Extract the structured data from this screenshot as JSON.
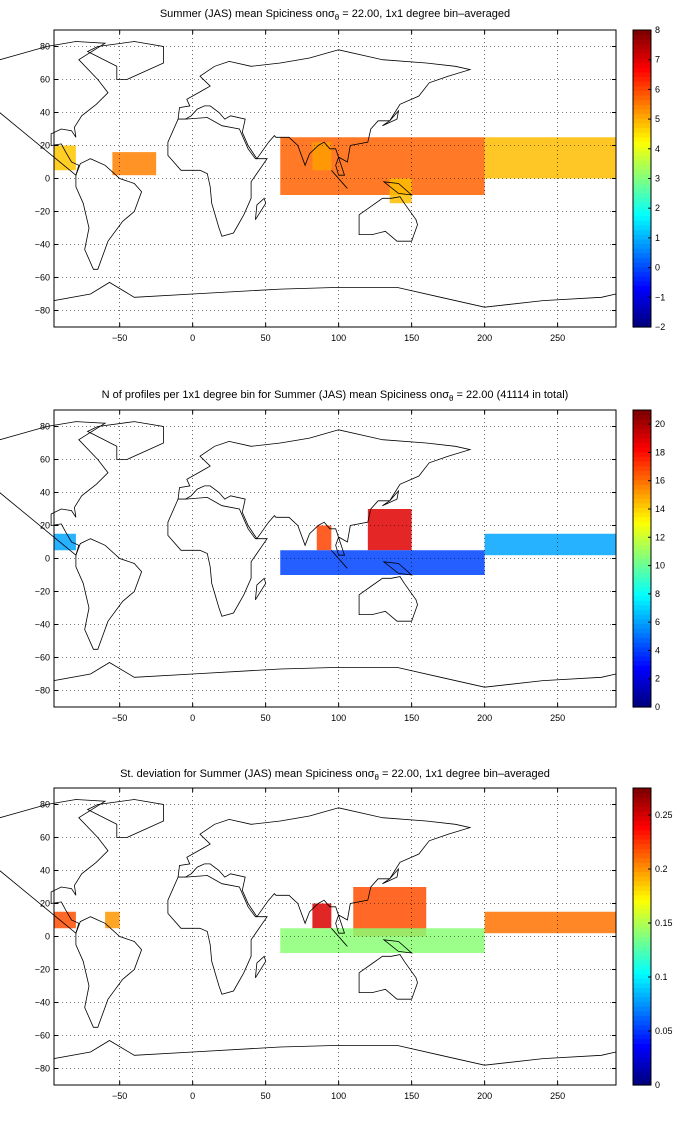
{
  "chart_data": [
    {
      "type": "heatmap",
      "title_prefix": "Summer (JAS) mean Spiciness on",
      "title_symbol": "σ",
      "title_subscript": "θ",
      "title_suffix": " = 22.00, 1x1 degree bin–averaged",
      "x_ticks": [
        "−50",
        "0",
        "50",
        "100",
        "150",
        "200",
        "250"
      ],
      "y_ticks": [
        "80",
        "60",
        "40",
        "20",
        "0",
        "−20",
        "−40",
        "−60",
        "−80"
      ],
      "xlim": [
        -95,
        290
      ],
      "ylim": [
        -90,
        90
      ],
      "grid": true,
      "colorbar": {
        "ticks": [
          "−2",
          "−1",
          "0",
          "1",
          "2",
          "3",
          "4",
          "5",
          "6",
          "7",
          "8"
        ],
        "range": [
          -2,
          8
        ],
        "colormap": "jet"
      },
      "regions": [
        {
          "lon": [
            60,
            200
          ],
          "lat": [
            -10,
            25
          ],
          "value": 5.8
        },
        {
          "lon": [
            200,
            290
          ],
          "lat": [
            0,
            25
          ],
          "value": 4.9
        },
        {
          "lon": [
            82,
            95
          ],
          "lat": [
            5,
            22
          ],
          "value": 5.2
        },
        {
          "lon": [
            -55,
            -25
          ],
          "lat": [
            2,
            16
          ],
          "value": 5.5
        },
        {
          "lon": [
            -95,
            -80
          ],
          "lat": [
            5,
            20
          ],
          "value": 4.8
        },
        {
          "lon": [
            135,
            150
          ],
          "lat": [
            -15,
            0
          ],
          "value": 4.9
        }
      ]
    },
    {
      "type": "heatmap",
      "title_prefix": "N of profiles per 1x1 degree bin for Summer (JAS) mean Spiciness on",
      "title_symbol": "σ",
      "title_subscript": "θ",
      "title_suffix": " = 22.00 (41114 in total)",
      "x_ticks": [
        "−50",
        "0",
        "50",
        "100",
        "150",
        "200",
        "250"
      ],
      "y_ticks": [
        "80",
        "60",
        "40",
        "20",
        "0",
        "−20",
        "−40",
        "−60",
        "−80"
      ],
      "xlim": [
        -95,
        290
      ],
      "ylim": [
        -90,
        90
      ],
      "grid": true,
      "colorbar": {
        "ticks": [
          "0",
          "2",
          "4",
          "6",
          "8",
          "10",
          "12",
          "14",
          "16",
          "18",
          "20"
        ],
        "range": [
          0,
          21
        ],
        "colormap": "jet"
      },
      "regions": [
        {
          "lon": [
            120,
            150
          ],
          "lat": [
            5,
            30
          ],
          "value": 19
        },
        {
          "lon": [
            85,
            95
          ],
          "lat": [
            5,
            20
          ],
          "value": 17
        },
        {
          "lon": [
            60,
            200
          ],
          "lat": [
            -10,
            5
          ],
          "value": 4
        },
        {
          "lon": [
            200,
            290
          ],
          "lat": [
            2,
            15
          ],
          "value": 6
        },
        {
          "lon": [
            -95,
            -80
          ],
          "lat": [
            5,
            15
          ],
          "value": 6
        }
      ]
    },
    {
      "type": "heatmap",
      "title_prefix": "St. deviation for Summer (JAS) mean Spiciness on",
      "title_symbol": "σ",
      "title_subscript": "θ",
      "title_suffix": " = 22.00, 1x1 degree bin–averaged",
      "x_ticks": [
        "−50",
        "0",
        "50",
        "100",
        "150",
        "200",
        "250"
      ],
      "y_ticks": [
        "80",
        "60",
        "40",
        "20",
        "0",
        "−20",
        "−40",
        "−60",
        "−80"
      ],
      "xlim": [
        -95,
        290
      ],
      "ylim": [
        -90,
        90
      ],
      "grid": true,
      "colorbar": {
        "ticks": [
          "0",
          "0.05",
          "0.1",
          "0.15",
          "0.2",
          "0.25"
        ],
        "range": [
          0,
          0.275
        ],
        "colormap": "jet"
      },
      "regions": [
        {
          "lon": [
            110,
            160
          ],
          "lat": [
            0,
            30
          ],
          "value": 0.22
        },
        {
          "lon": [
            82,
            95
          ],
          "lat": [
            5,
            20
          ],
          "value": 0.25
        },
        {
          "lon": [
            60,
            200
          ],
          "lat": [
            -10,
            5
          ],
          "value": 0.14
        },
        {
          "lon": [
            200,
            290
          ],
          "lat": [
            2,
            15
          ],
          "value": 0.21
        },
        {
          "lon": [
            -95,
            -80
          ],
          "lat": [
            5,
            15
          ],
          "value": 0.22
        },
        {
          "lon": [
            -60,
            -50
          ],
          "lat": [
            5,
            15
          ],
          "value": 0.2
        }
      ]
    }
  ]
}
